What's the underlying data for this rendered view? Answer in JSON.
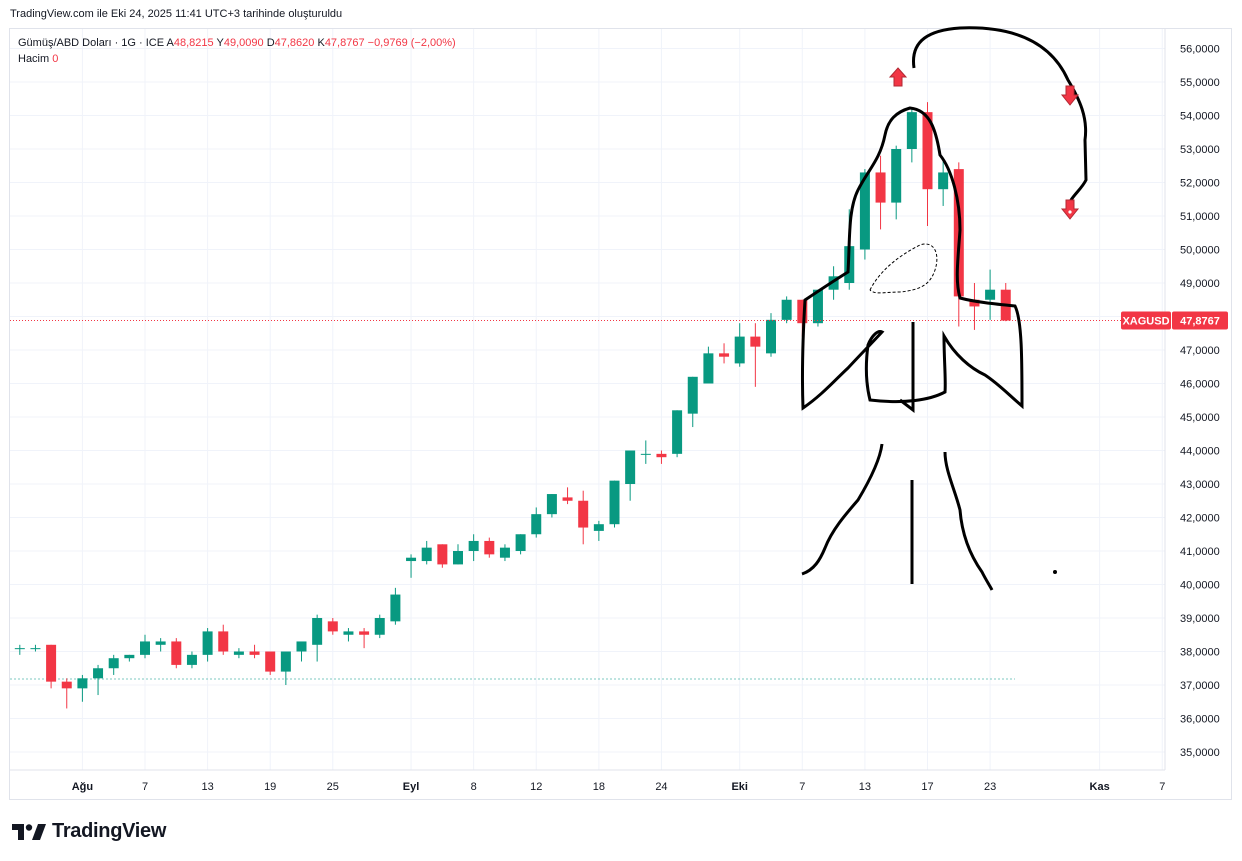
{
  "caption": "TradingView.com ile Eki 24, 2025 11:41 UTC+3 tarihinde oluşturuldu",
  "legend": {
    "symbol": "Gümüş/ABD Doları · 1G · ICE",
    "o_label": "A",
    "o_value": "48,8215",
    "h_label": "Y",
    "h_value": "49,0090",
    "l_label": "D",
    "l_value": "47,8620",
    "c_label": "K",
    "c_value": "47,8767",
    "change": "−0,9769 (−2,00%)",
    "volume_label": "Hacim",
    "volume_value": "0"
  },
  "price_tag": {
    "symbol": "XAGUSD",
    "value": "47,8767"
  },
  "brand": "TradingView",
  "colors": {
    "up": "#089981",
    "down": "#f23645",
    "grid": "#f0f3fa",
    "drawing": "#000000"
  },
  "chart_data": {
    "type": "candlestick",
    "ylim": [
      34.5,
      57.0
    ],
    "y_ticks": [
      "35,0000",
      "36,0000",
      "37,0000",
      "38,0000",
      "39,0000",
      "40,0000",
      "41,0000",
      "42,0000",
      "43,0000",
      "44,0000",
      "45,0000",
      "46,0000",
      "47,0000",
      "48,0000",
      "49,0000",
      "50,0000",
      "51,0000",
      "52,0000",
      "53,0000",
      "54,0000",
      "55,0000",
      "56,0000"
    ],
    "y_tick_values": [
      35,
      36,
      37,
      38,
      39,
      40,
      41,
      42,
      43,
      44,
      45,
      46,
      47,
      48,
      49,
      50,
      51,
      52,
      53,
      54,
      55,
      56
    ],
    "x_ticks": [
      {
        "label": "Ağu",
        "bold": true,
        "idx": 4
      },
      {
        "label": "7",
        "bold": false,
        "idx": 8
      },
      {
        "label": "13",
        "bold": false,
        "idx": 12
      },
      {
        "label": "19",
        "bold": false,
        "idx": 16
      },
      {
        "label": "25",
        "bold": false,
        "idx": 20
      },
      {
        "label": "Eyl",
        "bold": true,
        "idx": 25
      },
      {
        "label": "8",
        "bold": false,
        "idx": 29
      },
      {
        "label": "12",
        "bold": false,
        "idx": 33
      },
      {
        "label": "18",
        "bold": false,
        "idx": 37
      },
      {
        "label": "24",
        "bold": false,
        "idx": 41
      },
      {
        "label": "Eki",
        "bold": true,
        "idx": 46
      },
      {
        "label": "7",
        "bold": false,
        "idx": 50
      },
      {
        "label": "13",
        "bold": false,
        "idx": 54
      },
      {
        "label": "17",
        "bold": false,
        "idx": 58
      },
      {
        "label": "23",
        "bold": false,
        "idx": 62
      },
      {
        "label": "Kas",
        "bold": true,
        "idx": 69
      },
      {
        "label": "7",
        "bold": false,
        "idx": 73
      }
    ],
    "candles": [
      [
        38.1,
        38.2,
        37.9,
        38.1
      ],
      [
        38.1,
        38.2,
        38.0,
        38.1
      ],
      [
        38.2,
        38.2,
        36.9,
        37.1
      ],
      [
        37.1,
        37.2,
        36.3,
        36.9
      ],
      [
        36.9,
        37.3,
        36.5,
        37.2
      ],
      [
        37.2,
        37.6,
        36.7,
        37.5
      ],
      [
        37.5,
        37.9,
        37.3,
        37.8
      ],
      [
        37.8,
        37.9,
        37.7,
        37.9
      ],
      [
        37.9,
        38.5,
        37.8,
        38.3
      ],
      [
        38.2,
        38.4,
        38.0,
        38.3
      ],
      [
        38.3,
        38.4,
        37.5,
        37.6
      ],
      [
        37.6,
        38.0,
        37.5,
        37.9
      ],
      [
        37.9,
        38.7,
        37.7,
        38.6
      ],
      [
        38.6,
        38.8,
        37.9,
        38.0
      ],
      [
        37.9,
        38.1,
        37.8,
        38.0
      ],
      [
        38.0,
        38.2,
        37.8,
        37.9
      ],
      [
        38.0,
        38.0,
        37.3,
        37.4
      ],
      [
        37.4,
        38.0,
        37.0,
        38.0
      ],
      [
        38.0,
        38.3,
        37.7,
        38.3
      ],
      [
        38.2,
        39.1,
        37.7,
        39.0
      ],
      [
        38.9,
        39.0,
        38.5,
        38.6
      ],
      [
        38.5,
        38.7,
        38.3,
        38.6
      ],
      [
        38.6,
        38.7,
        38.1,
        38.5
      ],
      [
        38.5,
        39.1,
        38.4,
        39.0
      ],
      [
        38.9,
        39.9,
        38.8,
        39.7
      ],
      [
        40.7,
        40.9,
        40.2,
        40.8
      ],
      [
        40.7,
        41.3,
        40.6,
        41.1
      ],
      [
        41.2,
        41.2,
        40.5,
        40.6
      ],
      [
        40.6,
        41.2,
        40.6,
        41.0
      ],
      [
        41.0,
        41.5,
        40.7,
        41.3
      ],
      [
        41.3,
        41.4,
        40.8,
        40.9
      ],
      [
        40.8,
        41.2,
        40.7,
        41.1
      ],
      [
        41.0,
        41.5,
        40.9,
        41.5
      ],
      [
        41.5,
        42.3,
        41.4,
        42.1
      ],
      [
        42.1,
        42.7,
        42.0,
        42.7
      ],
      [
        42.6,
        42.9,
        42.4,
        42.5
      ],
      [
        42.5,
        42.8,
        41.2,
        41.7
      ],
      [
        41.6,
        41.9,
        41.3,
        41.8
      ],
      [
        41.8,
        43.1,
        41.7,
        43.1
      ],
      [
        43.0,
        44.0,
        42.5,
        44.0
      ],
      [
        43.9,
        44.3,
        43.6,
        43.9
      ],
      [
        43.9,
        44.0,
        43.6,
        43.8
      ],
      [
        43.9,
        45.2,
        43.8,
        45.2
      ],
      [
        45.1,
        46.2,
        44.7,
        46.2
      ],
      [
        46.0,
        47.1,
        46.0,
        46.9
      ],
      [
        46.9,
        47.2,
        46.6,
        46.8
      ],
      [
        46.6,
        47.8,
        46.5,
        47.4
      ],
      [
        47.4,
        47.8,
        45.9,
        47.1
      ],
      [
        46.9,
        48.1,
        46.8,
        47.9
      ],
      [
        47.9,
        48.6,
        47.8,
        48.5
      ],
      [
        48.5,
        48.5,
        47.4,
        47.8
      ],
      [
        47.8,
        48.8,
        47.7,
        48.8
      ],
      [
        48.8,
        49.5,
        48.5,
        49.2
      ],
      [
        49.0,
        51.2,
        48.8,
        50.1
      ],
      [
        50.0,
        52.4,
        49.7,
        52.3
      ],
      [
        52.3,
        52.8,
        50.6,
        51.4
      ],
      [
        51.4,
        53.1,
        50.9,
        53.0
      ],
      [
        53.0,
        54.2,
        52.6,
        54.1
      ],
      [
        54.1,
        54.4,
        50.7,
        51.8
      ],
      [
        51.8,
        52.7,
        51.3,
        52.3
      ],
      [
        52.4,
        52.6,
        47.7,
        48.6
      ],
      [
        48.5,
        49.0,
        47.6,
        48.3
      ],
      [
        48.5,
        49.4,
        47.9,
        48.8
      ],
      [
        48.8,
        49.0,
        47.86,
        47.88
      ]
    ]
  }
}
